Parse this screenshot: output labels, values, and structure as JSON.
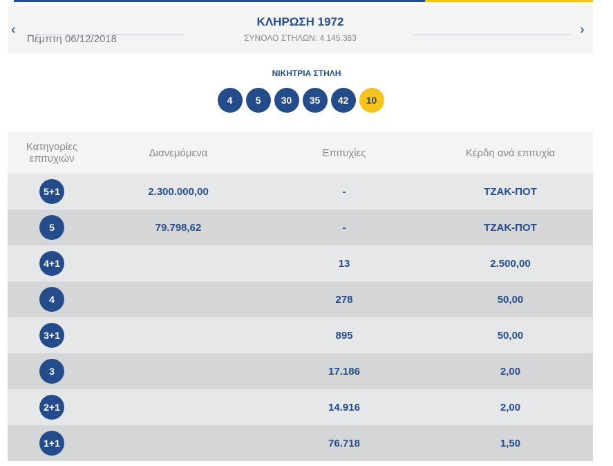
{
  "header": {
    "title": "ΚΛΗΡΩΣΗ 1972",
    "date": "Πέμπτη 06/12/2018",
    "total": "ΣΥΝΟΛΟ ΣΤΗΛΩΝ: 4.145.383",
    "prev": "‹",
    "next": "›"
  },
  "winning": {
    "title": "ΝΙΚΗΤΡΙΑ ΣΤΗΛΗ",
    "numbers": [
      "4",
      "5",
      "30",
      "35",
      "42"
    ],
    "joker": "10"
  },
  "colors": {
    "brand_blue": "#244c8a",
    "joker_yellow": "#f7c21c"
  },
  "table": {
    "headers": [
      "Κατηγορίες επιτυχιών",
      "Διανεμόμενα",
      "Επιτυχίες",
      "Κέρδη ανά επιτυχία"
    ],
    "rows": [
      {
        "cat": "5+1",
        "dist": "2.300.000,00",
        "wins": "-",
        "prize": "ΤΖΑΚ-ΠΟΤ"
      },
      {
        "cat": "5",
        "dist": "79.798,62",
        "wins": "-",
        "prize": "ΤΖΑΚ-ΠΟΤ"
      },
      {
        "cat": "4+1",
        "dist": "",
        "wins": "13",
        "prize": "2.500,00"
      },
      {
        "cat": "4",
        "dist": "",
        "wins": "278",
        "prize": "50,00"
      },
      {
        "cat": "3+1",
        "dist": "",
        "wins": "895",
        "prize": "50,00"
      },
      {
        "cat": "3",
        "dist": "",
        "wins": "17.186",
        "prize": "2,00"
      },
      {
        "cat": "2+1",
        "dist": "",
        "wins": "14.916",
        "prize": "2,00"
      },
      {
        "cat": "1+1",
        "dist": "",
        "wins": "76.718",
        "prize": "1,50"
      }
    ]
  }
}
